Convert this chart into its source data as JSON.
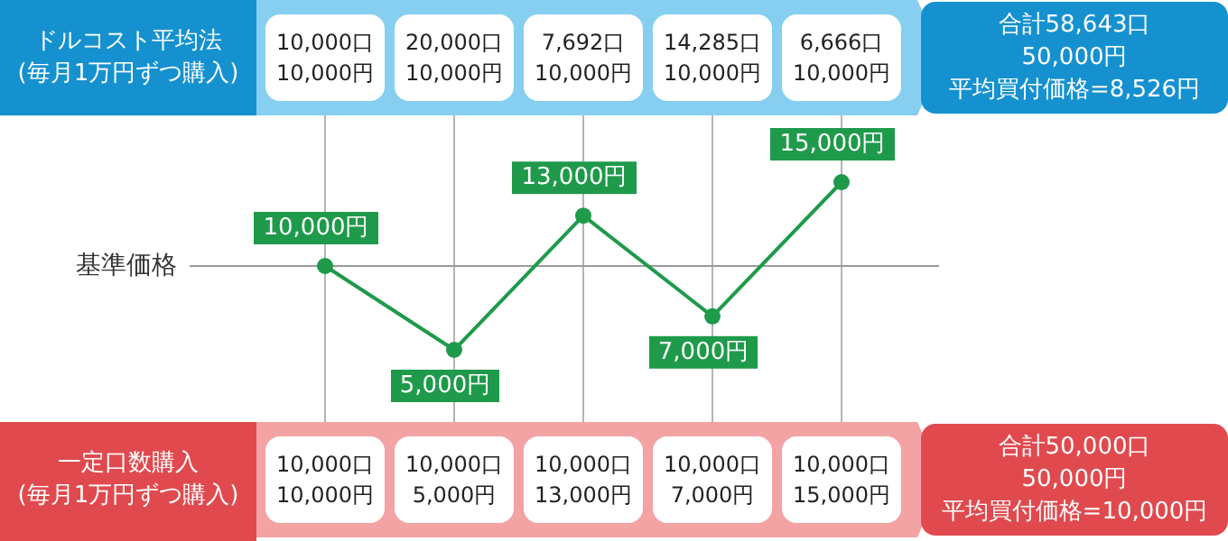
{
  "chart_data": {
    "type": "line",
    "categories": [
      null,
      null,
      null,
      null,
      null
    ],
    "series": [
      {
        "color": "#1e9a4a",
        "values": [
          10000,
          5000,
          13000,
          7000,
          15000
        ],
        "value_labels": [
          "10,000円",
          "5,000円",
          "13,000円",
          "7,000円",
          "15,000円"
        ]
      }
    ],
    "marker": "circle",
    "grid": "x",
    "ref_lines": [
      {
        "axis": "y",
        "value": 10000,
        "label": "基準価格",
        "color": "#9a9a9a"
      }
    ],
    "annotations": [
      "ドルコスト平均法\n(毎月1万円ずつ購入)",
      "10,000口\n10,000円",
      "20,000口\n10,000円",
      "7,692口\n10,000円",
      "14,285口\n10,000円",
      "6,666口\n10,000円",
      "合計58,643口\n50,000円",
      "平均買付価格=8,526円",
      "一定口数購入\n(毎月1万円ずつ購入)",
      "10,000口\n10,000円",
      "10,000口\n5,000円",
      "10,000口\n13,000円",
      "10,000口\n7,000円",
      "10,000口\n15,000円",
      "合計50,000口\n50,000円",
      "平均買付価格=10,000円"
    ]
  }
}
